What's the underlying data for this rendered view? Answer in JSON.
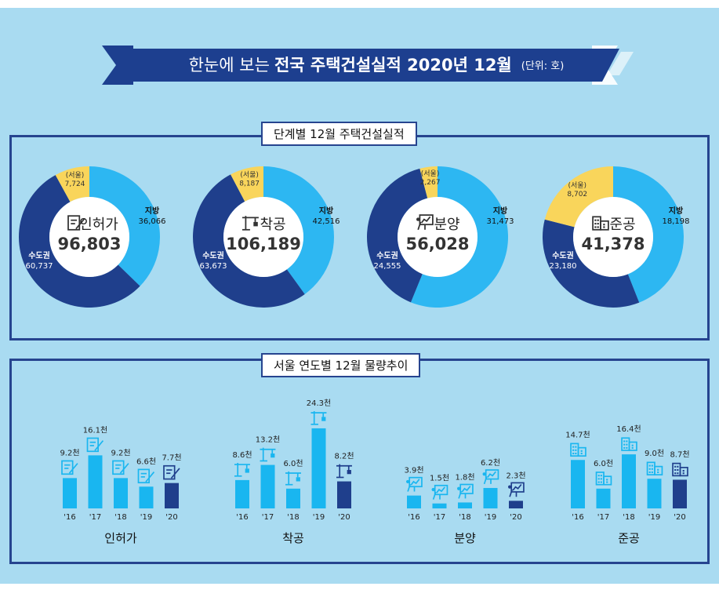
{
  "header": {
    "title_prefix": "한눈에 보는",
    "title_main": "전국 주택건설실적 2020년 12월",
    "title_unit": "(단위: 호)"
  },
  "donut_panel": {
    "title": "단계별 12월 주택건설실적"
  },
  "trend_panel": {
    "title": "서울 연도별 12월 물량추이"
  },
  "colors": {
    "seoul": "#f9d55b",
    "capital": "#1f3f8c",
    "regional": "#2db7f2",
    "panel_border": "#26448f",
    "background": "#a9dbf1"
  },
  "chart_data": [
    {
      "type": "pie",
      "name": "인허가",
      "total": "96,803",
      "icon": "permit-document-icon",
      "slices": [
        {
          "label": "지방",
          "value": 36066,
          "display": "36,066",
          "color": "#2db7f2"
        },
        {
          "label": "수도권",
          "value": 60737,
          "display": "60,737",
          "color": "#1f3f8c"
        },
        {
          "label": "(서울)",
          "value": 7724,
          "display": "7,724",
          "color": "#f9d55b",
          "subset_of": "수도권"
        }
      ]
    },
    {
      "type": "pie",
      "name": "착공",
      "total": "106,189",
      "icon": "crane-icon",
      "slices": [
        {
          "label": "지방",
          "value": 42516,
          "display": "42,516",
          "color": "#2db7f2"
        },
        {
          "label": "수도권",
          "value": 63673,
          "display": "63,673",
          "color": "#1f3f8c"
        },
        {
          "label": "(서울)",
          "value": 8187,
          "display": "8,187",
          "color": "#f9d55b",
          "subset_of": "수도권"
        }
      ]
    },
    {
      "type": "pie",
      "name": "분양",
      "total": "56,028",
      "icon": "presentation-board-icon",
      "slices": [
        {
          "label": "지방",
          "value": 31473,
          "display": "31,473",
          "color": "#2db7f2"
        },
        {
          "label": "수도권",
          "value": 24555,
          "display": "24,555",
          "color": "#1f3f8c"
        },
        {
          "label": "(서울)",
          "value": 2267,
          "display": "2,267",
          "color": "#f9d55b",
          "subset_of": "수도권"
        }
      ]
    },
    {
      "type": "pie",
      "name": "준공",
      "total": "41,378",
      "icon": "building-icon",
      "slices": [
        {
          "label": "지방",
          "value": 18198,
          "display": "18,198",
          "color": "#2db7f2"
        },
        {
          "label": "수도권",
          "value": 23180,
          "display": "23,180",
          "color": "#1f3f8c"
        },
        {
          "label": "(서울)",
          "value": 8702,
          "display": "8,702",
          "color": "#f9d55b",
          "subset_of": "수도권"
        }
      ]
    },
    {
      "type": "bar",
      "name": "인허가",
      "icon": "permit-document-icon",
      "categories": [
        "'16",
        "'17",
        "'18",
        "'19",
        "'20"
      ],
      "values": [
        9.2,
        16.1,
        9.2,
        6.6,
        7.7
      ],
      "value_labels": [
        "9.2천",
        "16.1천",
        "9.2천",
        "6.6천",
        "7.7천"
      ],
      "highlight_last": true
    },
    {
      "type": "bar",
      "name": "착공",
      "icon": "crane-icon",
      "categories": [
        "'16",
        "'17",
        "'18",
        "'19",
        "'20"
      ],
      "values": [
        8.6,
        13.2,
        6.0,
        24.3,
        8.2
      ],
      "value_labels": [
        "8.6천",
        "13.2천",
        "6.0천",
        "24.3천",
        "8.2천"
      ],
      "highlight_last": true
    },
    {
      "type": "bar",
      "name": "분양",
      "icon": "presentation-board-icon",
      "categories": [
        "'16",
        "'17",
        "'18",
        "'19",
        "'20"
      ],
      "values": [
        3.9,
        1.5,
        1.8,
        6.2,
        2.3
      ],
      "value_labels": [
        "3.9천",
        "1.5천",
        "1.8천",
        "6.2천",
        "2.3천"
      ],
      "highlight_last": true
    },
    {
      "type": "bar",
      "name": "준공",
      "icon": "building-icon",
      "categories": [
        "'16",
        "'17",
        "'18",
        "'19",
        "'20"
      ],
      "values": [
        14.7,
        6.0,
        16.4,
        9.0,
        8.7
      ],
      "value_labels": [
        "14.7천",
        "6.0천",
        "16.4천",
        "9.0천",
        "8.7천"
      ],
      "highlight_last": true
    }
  ]
}
